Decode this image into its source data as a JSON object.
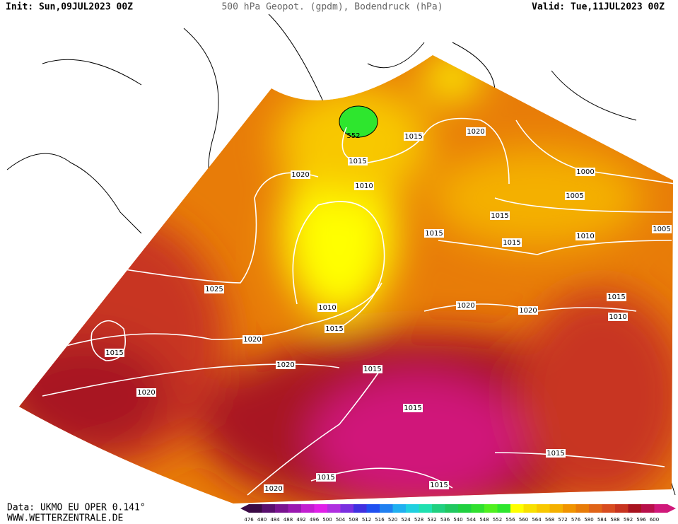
{
  "header": {
    "init": "Init: Sun,09JUL2023 00Z",
    "title": "500 hPa Geopot. (gpdm), Bodendruck (hPa)",
    "valid": "Valid: Tue,11JUL2023 00Z"
  },
  "contour_labels": [
    "552",
    "1015",
    "1020",
    "1015",
    "1020",
    "1010",
    "1000",
    "1005",
    "1015",
    "1015",
    "1015",
    "1010",
    "1005",
    "1025",
    "1010",
    "1015",
    "1020",
    "1020",
    "1015",
    "1010",
    "1015",
    "1020",
    "1020",
    "1015",
    "1020",
    "1015",
    "1015",
    "1015",
    "1015",
    "1020"
  ],
  "legend": {
    "values": [
      476,
      480,
      484,
      488,
      492,
      496,
      500,
      504,
      508,
      512,
      516,
      520,
      524,
      528,
      532,
      536,
      540,
      544,
      548,
      552,
      556,
      560,
      564,
      568,
      572,
      576,
      580,
      584,
      588,
      592,
      596,
      600
    ],
    "colors": [
      "#3b0a45",
      "#5a0f6e",
      "#7a1490",
      "#9a18b0",
      "#c21ed0",
      "#e020e8",
      "#b030e0",
      "#7a30e0",
      "#4030e0",
      "#2050f0",
      "#2080f0",
      "#20b0f0",
      "#20d0e0",
      "#20e0b0",
      "#20d080",
      "#20c860",
      "#20d040",
      "#30e030",
      "#50f020",
      "#2ee62e",
      "#ffff00",
      "#f8e000",
      "#f8c800",
      "#f4b000",
      "#f09400",
      "#e87c08",
      "#e06418",
      "#d84c20",
      "#c83420",
      "#a81420",
      "#b8104a",
      "#d0187a"
    ]
  },
  "footer": {
    "data": "Data: UKMO EU OPER 0.141°",
    "site": "WWW.WETTERZENTRALE.DE"
  }
}
